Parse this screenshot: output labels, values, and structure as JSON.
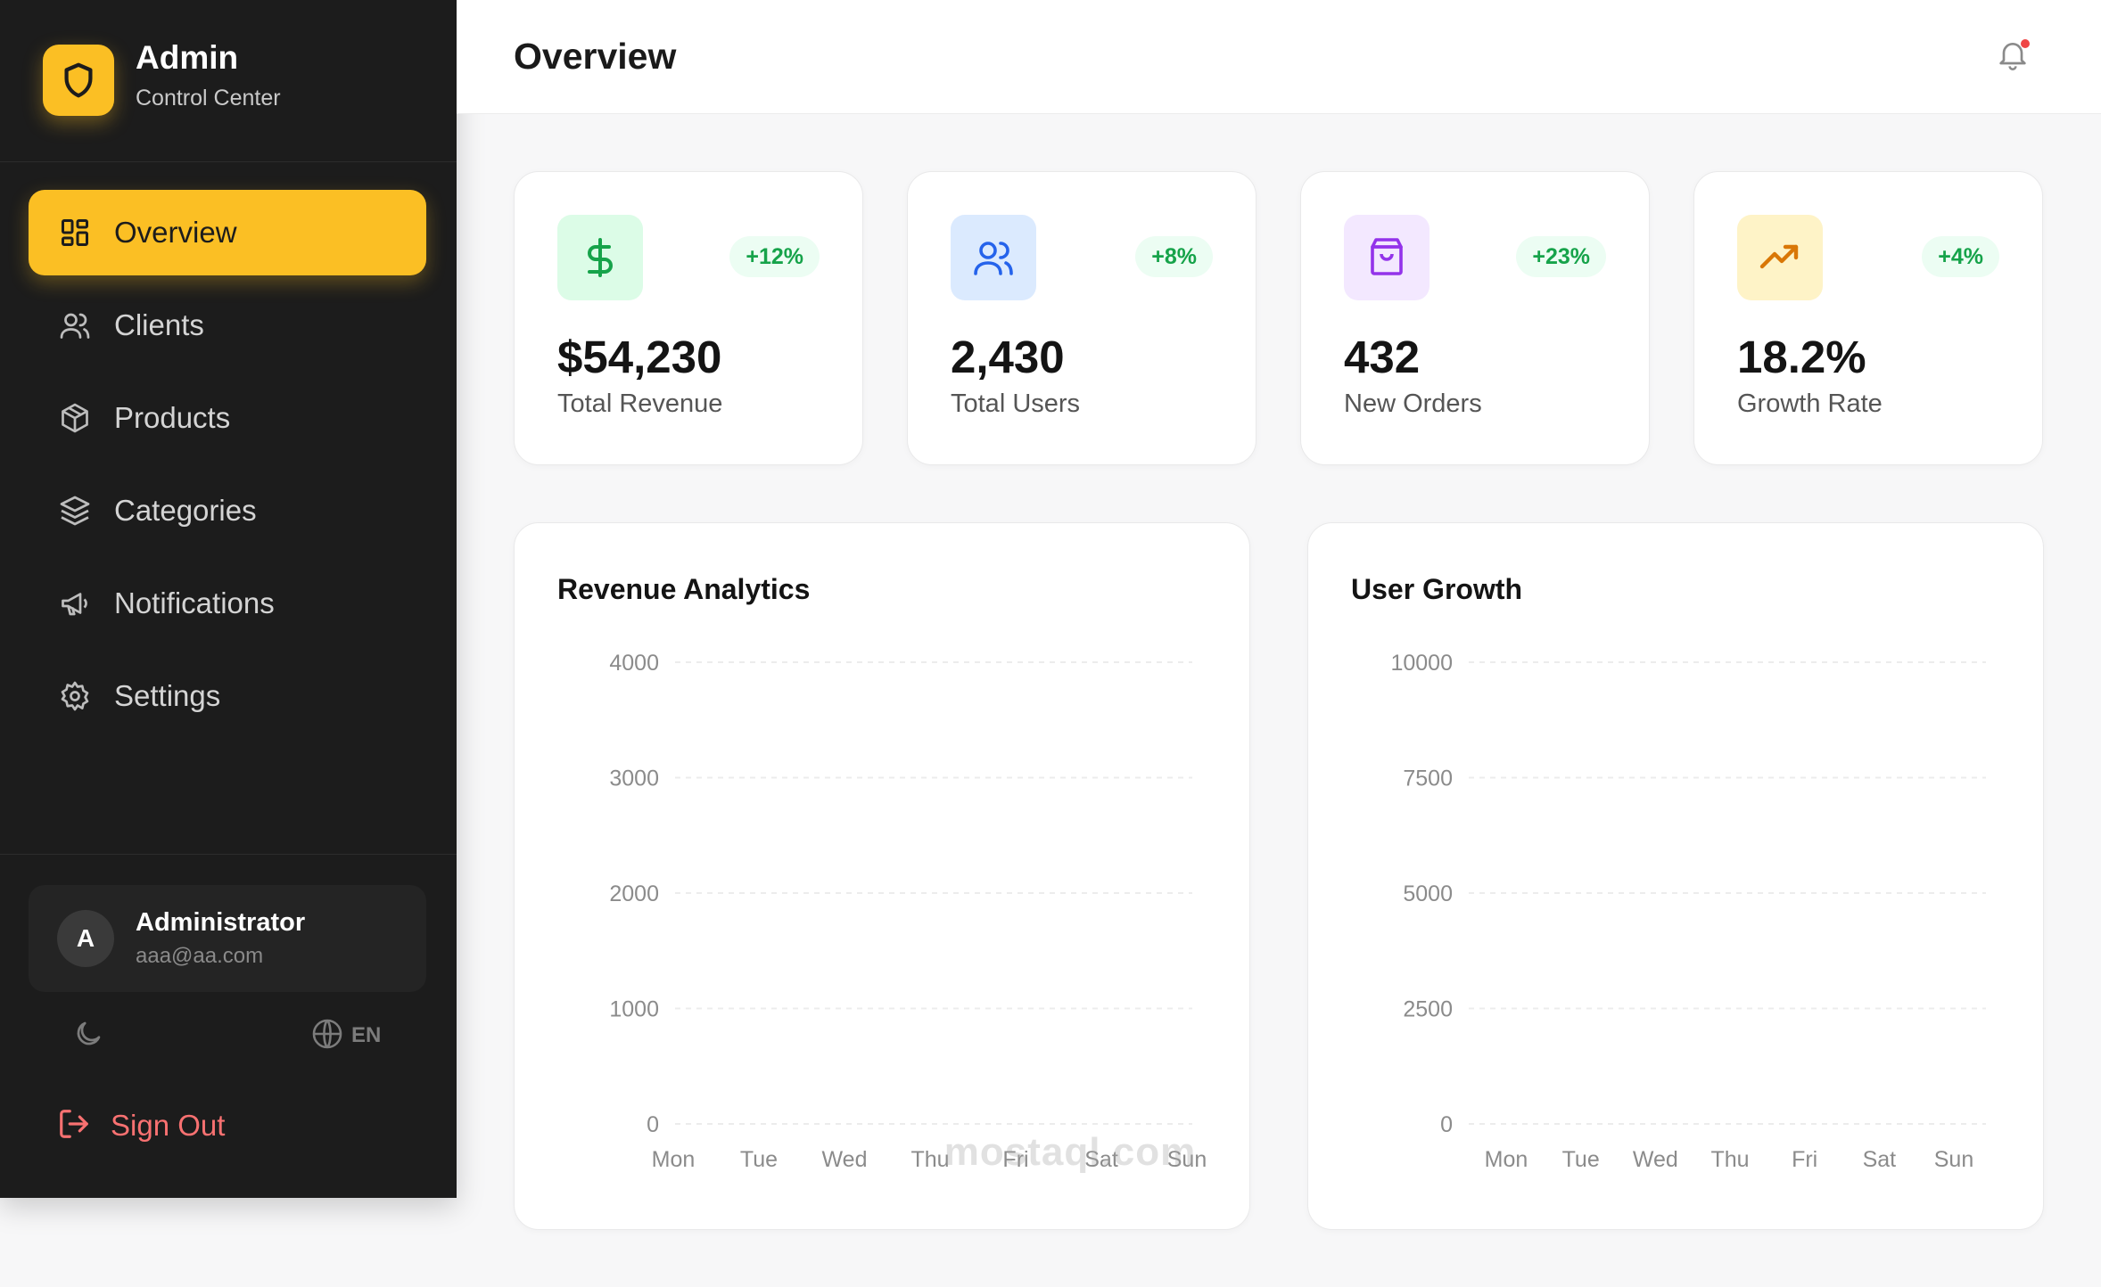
{
  "brand": {
    "title": "Admin",
    "subtitle": "Control Center"
  },
  "nav": [
    {
      "label": "Overview",
      "icon": "grid-icon",
      "active": true
    },
    {
      "label": "Clients",
      "icon": "users-icon",
      "active": false
    },
    {
      "label": "Products",
      "icon": "box-icon",
      "active": false
    },
    {
      "label": "Categories",
      "icon": "layers-icon",
      "active": false
    },
    {
      "label": "Notifications",
      "icon": "megaphone-icon",
      "active": false
    },
    {
      "label": "Settings",
      "icon": "gear-icon",
      "active": false
    }
  ],
  "user": {
    "initial": "A",
    "name": "Administrator",
    "email": "aaa@aa.com"
  },
  "footer": {
    "language": "EN",
    "signout_label": "Sign Out"
  },
  "header": {
    "title": "Overview"
  },
  "stats": [
    {
      "value": "$54,230",
      "label": "Total Revenue",
      "change": "+12%",
      "icon": "dollar-icon",
      "color": "#16a34a",
      "bg": "#dcfce7"
    },
    {
      "value": "2,430",
      "label": "Total Users",
      "change": "+8%",
      "icon": "users-icon",
      "color": "#2563eb",
      "bg": "#dbeafe"
    },
    {
      "value": "432",
      "label": "New Orders",
      "change": "+23%",
      "icon": "shopping-bag-icon",
      "color": "#9333ea",
      "bg": "#f3e8ff"
    },
    {
      "value": "18.2%",
      "label": "Growth Rate",
      "change": "+4%",
      "icon": "trending-up-icon",
      "color": "#d97706",
      "bg": "#fef3c7"
    }
  ],
  "colors": {
    "accent": "#fbbf24",
    "sidebar": "#1c1c1c",
    "signout": "#f87171",
    "positive": "#16a34a"
  },
  "chart_data": [
    {
      "type": "line",
      "title": "Revenue Analytics",
      "categories": [
        "Mon",
        "Tue",
        "Wed",
        "Thu",
        "Fri",
        "Sat",
        "Sun"
      ],
      "yticks": [
        0,
        1000,
        2000,
        3000,
        4000
      ],
      "ylim": [
        0,
        4000
      ],
      "series": [],
      "grid": true
    },
    {
      "type": "line",
      "title": "User Growth",
      "categories": [
        "Mon",
        "Tue",
        "Wed",
        "Thu",
        "Fri",
        "Sat",
        "Sun"
      ],
      "yticks": [
        0,
        2500,
        5000,
        7500,
        10000
      ],
      "ylim": [
        0,
        10000
      ],
      "series": [],
      "grid": true
    }
  ],
  "watermark": {
    "text": "mostaql.com"
  }
}
